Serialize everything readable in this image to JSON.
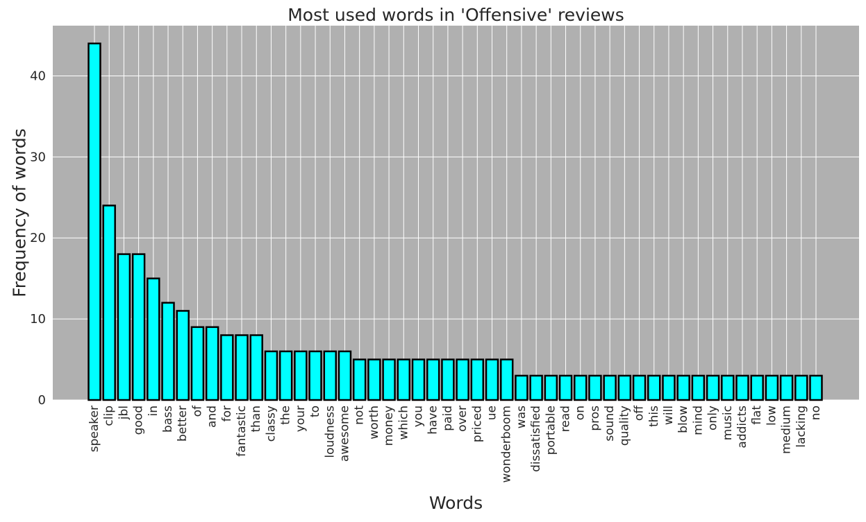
{
  "chart_data": {
    "type": "bar",
    "title": "Most used words in 'Offensive' reviews",
    "xlabel": "Words",
    "ylabel": "Frequency of words",
    "categories": [
      "speaker",
      "clip",
      "jbl",
      "good",
      "in",
      "bass",
      "better",
      "of",
      "and",
      "for",
      "fantastic",
      "than",
      "classy",
      "the",
      "your",
      "to",
      "loudness",
      "awesome",
      "not",
      "worth",
      "money",
      "which",
      "you",
      "have",
      "paid",
      "over",
      "priced",
      "ue",
      "wonderboom",
      "was",
      "dissatisfied",
      "portable",
      "read",
      "on",
      "pros",
      "sound",
      "quality",
      "off",
      "this",
      "will",
      "blow",
      "mind",
      "only",
      "music",
      "addicts",
      "flat",
      "low",
      "medium",
      "lacking",
      "no"
    ],
    "values": [
      44,
      24,
      18,
      18,
      15,
      12,
      11,
      9,
      9,
      8,
      8,
      8,
      6,
      6,
      6,
      6,
      6,
      6,
      5,
      5,
      5,
      5,
      5,
      5,
      5,
      5,
      5,
      5,
      5,
      3,
      3,
      3,
      3,
      3,
      3,
      3,
      3,
      3,
      3,
      3,
      3,
      3,
      3,
      3,
      3,
      3,
      3,
      3,
      3,
      3
    ],
    "yticks": [
      0,
      10,
      20,
      30,
      40
    ],
    "ylim": [
      0,
      46.2
    ],
    "grid": true,
    "colors": {
      "bar_fill": "#00ffff",
      "bar_edge": "#000000",
      "plot_background": "#b0b0b0",
      "grid": "#ffffff"
    }
  }
}
